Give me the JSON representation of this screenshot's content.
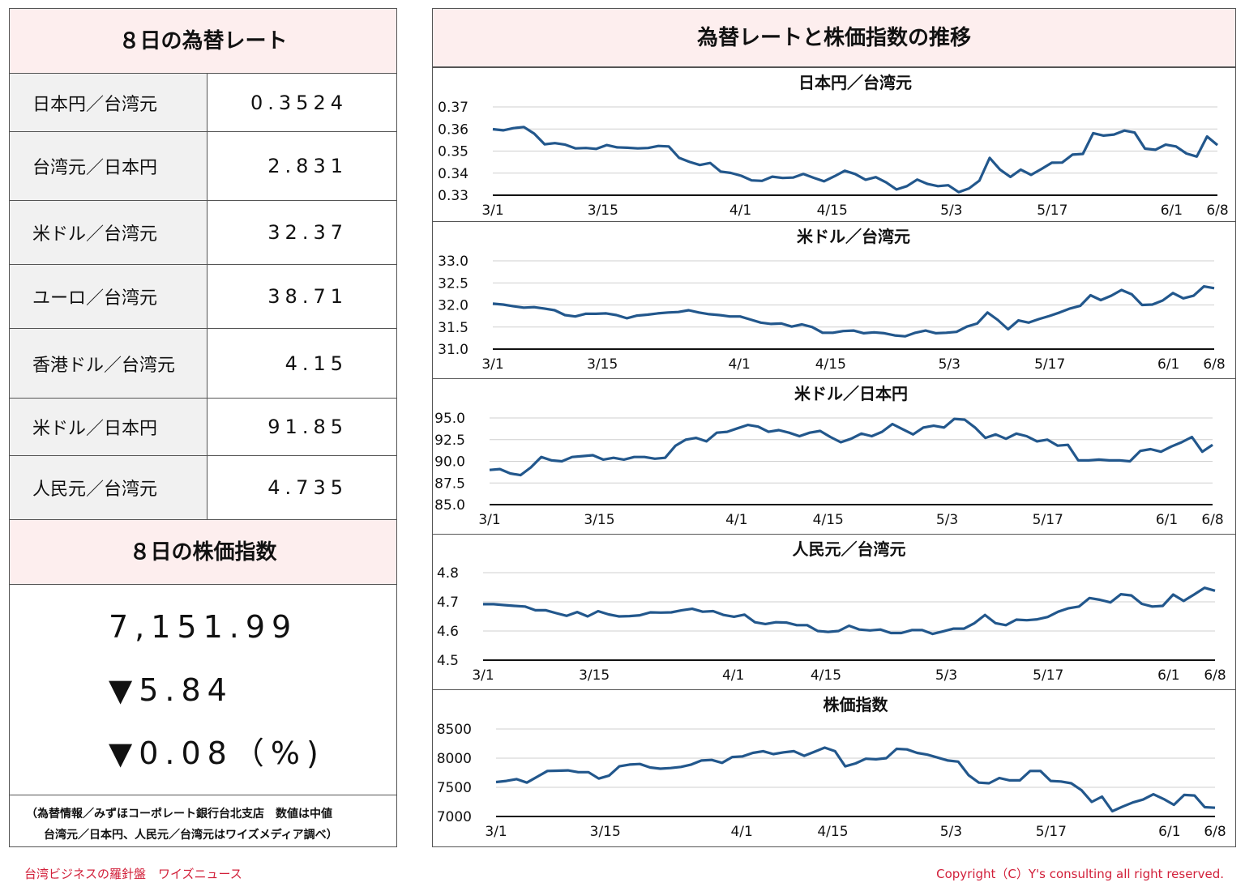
{
  "rates_panel": {
    "title": "８日の為替レート",
    "rows": [
      {
        "name": "日本円／台湾元",
        "value": "0.3524"
      },
      {
        "name": "台湾元／日本円",
        "value": "2.831"
      },
      {
        "name": "米ドル／台湾元",
        "value": "32.37"
      },
      {
        "name": "ユーロ／台湾元",
        "value": "38.71"
      },
      {
        "name": "香港ドル／台湾元",
        "value": "4.15"
      },
      {
        "name": "米ドル／日本円",
        "value": "91.85"
      },
      {
        "name": "人民元／台湾元",
        "value": "4.735"
      }
    ]
  },
  "stock_panel": {
    "title": "８日の株価指数",
    "index": "7,151.99",
    "change": "▼5.84",
    "change_pct": "▼0.08（%)"
  },
  "source_note": {
    "line1": "（為替情報／みずほコーポレート銀行台北支店　数値は中値",
    "line2": "台湾元／日本円、人民元／台湾元はワイズメディア調べ）"
  },
  "charts_panel": {
    "title": "為替レートと株価指数の推移"
  },
  "footer": {
    "left": "台湾ビジネスの羅針盤　ワイズニュース",
    "right": "Copyright（C）Y's consulting all right reserved."
  },
  "colors": {
    "line": "#22578c",
    "header_bg": "#fdeeee",
    "footer_text": "#d2203a"
  },
  "chart_data": [
    {
      "type": "line",
      "title": "日本円／台湾元",
      "x_ticks": [
        "3/1",
        "3/15",
        "4/1",
        "4/15",
        "5/3",
        "5/17",
        "6/1",
        "6/8"
      ],
      "x_tick_index": [
        0,
        12,
        27,
        37,
        50,
        61,
        74,
        79
      ],
      "y_ticks": [
        "0.33",
        "0.34",
        "0.35",
        "0.36",
        "0.37"
      ],
      "ylim": [
        0.33,
        0.37
      ],
      "values": [
        0.3599,
        0.3594,
        0.3604,
        0.3609,
        0.3579,
        0.3531,
        0.3536,
        0.3529,
        0.3512,
        0.3514,
        0.351,
        0.3527,
        0.3517,
        0.3515,
        0.3512,
        0.3514,
        0.3523,
        0.3521,
        0.3469,
        0.3451,
        0.3437,
        0.3446,
        0.3407,
        0.3401,
        0.3388,
        0.3367,
        0.3365,
        0.3384,
        0.3378,
        0.338,
        0.3396,
        0.3379,
        0.3363,
        0.3386,
        0.3411,
        0.3396,
        0.337,
        0.3382,
        0.3358,
        0.3326,
        0.3341,
        0.3371,
        0.3351,
        0.3341,
        0.3345,
        0.3314,
        0.3331,
        0.3366,
        0.3469,
        0.3416,
        0.3383,
        0.3416,
        0.3392,
        0.3419,
        0.3447,
        0.3448,
        0.3484,
        0.3487,
        0.3581,
        0.357,
        0.3575,
        0.3593,
        0.3584,
        0.3511,
        0.3506,
        0.3529,
        0.3521,
        0.3489,
        0.3475,
        0.3566,
        0.3527
      ]
    },
    {
      "type": "line",
      "title": "米ドル／台湾元",
      "x_ticks": [
        "3/1",
        "3/15",
        "4/1",
        "4/15",
        "5/3",
        "5/17",
        "6/1",
        "6/8"
      ],
      "x_tick_index": [
        0,
        12,
        27,
        37,
        50,
        61,
        74,
        79
      ],
      "y_ticks": [
        "31.0",
        "31.5",
        "32.0",
        "32.5",
        "33.0"
      ],
      "ylim": [
        31.0,
        33.0
      ],
      "values": [
        32.03,
        32.01,
        31.97,
        31.94,
        31.95,
        31.92,
        31.88,
        31.77,
        31.74,
        31.8,
        31.8,
        31.81,
        31.77,
        31.7,
        31.76,
        31.78,
        31.81,
        31.83,
        31.84,
        31.88,
        31.83,
        31.79,
        31.77,
        31.74,
        31.74,
        31.67,
        31.6,
        31.57,
        31.58,
        31.51,
        31.56,
        31.5,
        31.37,
        31.37,
        31.41,
        31.42,
        31.36,
        31.38,
        31.36,
        31.31,
        31.29,
        31.37,
        31.42,
        31.36,
        31.37,
        31.39,
        31.51,
        31.58,
        31.83,
        31.66,
        31.45,
        31.65,
        31.6,
        31.68,
        31.75,
        31.83,
        31.92,
        31.98,
        32.22,
        32.11,
        32.21,
        32.34,
        32.24,
        32.0,
        32.01,
        32.1,
        32.27,
        32.15,
        32.21,
        32.42,
        32.38
      ]
    },
    {
      "type": "line",
      "title": "米ドル／日本円",
      "x_ticks": [
        "3/1",
        "3/15",
        "4/1",
        "4/15",
        "5/3",
        "5/17",
        "6/1",
        "6/8"
      ],
      "x_tick_index": [
        0,
        12,
        27,
        37,
        50,
        61,
        74,
        79
      ],
      "y_ticks": [
        "85.0",
        "87.5",
        "90.0",
        "92.5",
        "95.0"
      ],
      "ylim": [
        85.0,
        95.0
      ],
      "values": [
        89.0,
        89.1,
        88.6,
        88.4,
        89.3,
        90.5,
        90.1,
        90.0,
        90.5,
        90.6,
        90.7,
        90.2,
        90.4,
        90.2,
        90.5,
        90.5,
        90.3,
        90.4,
        91.8,
        92.5,
        92.7,
        92.3,
        93.3,
        93.4,
        93.8,
        94.2,
        94.0,
        93.4,
        93.6,
        93.3,
        92.9,
        93.3,
        93.5,
        92.8,
        92.2,
        92.6,
        93.2,
        92.9,
        93.4,
        94.3,
        93.7,
        93.1,
        93.9,
        94.1,
        93.9,
        94.9,
        94.8,
        93.9,
        92.7,
        93.1,
        92.6,
        93.2,
        92.9,
        92.3,
        92.5,
        91.8,
        91.9,
        90.1,
        90.1,
        90.2,
        90.1,
        90.1,
        90.0,
        91.2,
        91.4,
        91.1,
        91.7,
        92.2,
        92.8,
        91.1,
        91.9
      ]
    },
    {
      "type": "line",
      "title": "人民元／台湾元",
      "x_ticks": [
        "3/1",
        "3/15",
        "4/1",
        "4/15",
        "5/3",
        "5/17",
        "6/1",
        "6/8"
      ],
      "x_tick_index": [
        0,
        12,
        27,
        37,
        50,
        61,
        74,
        79
      ],
      "y_ticks": [
        "4.5",
        "4.6",
        "4.7",
        "4.8"
      ],
      "ylim": [
        4.5,
        4.8
      ],
      "values": [
        4.692,
        4.692,
        4.689,
        4.686,
        4.684,
        4.671,
        4.671,
        4.661,
        4.652,
        4.665,
        4.65,
        4.668,
        4.657,
        4.65,
        4.651,
        4.654,
        4.664,
        4.663,
        4.664,
        4.671,
        4.676,
        4.666,
        4.668,
        4.655,
        4.649,
        4.656,
        4.63,
        4.624,
        4.63,
        4.629,
        4.62,
        4.62,
        4.6,
        4.597,
        4.6,
        4.618,
        4.605,
        4.602,
        4.605,
        4.593,
        4.593,
        4.603,
        4.603,
        4.59,
        4.599,
        4.608,
        4.608,
        4.627,
        4.655,
        4.627,
        4.62,
        4.639,
        4.637,
        4.64,
        4.648,
        4.666,
        4.678,
        4.684,
        4.713,
        4.707,
        4.698,
        4.726,
        4.722,
        4.693,
        4.684,
        4.686,
        4.725,
        4.703,
        4.725,
        4.748,
        4.738
      ]
    },
    {
      "type": "line",
      "title": "株価指数",
      "x_ticks": [
        "3/1",
        "3/15",
        "4/1",
        "4/15",
        "5/3",
        "5/17",
        "6/1",
        "6/8"
      ],
      "x_tick_index": [
        0,
        12,
        27,
        37,
        50,
        61,
        74,
        79
      ],
      "y_ticks": [
        "7000",
        "7500",
        "8000",
        "8500"
      ],
      "ylim": [
        7000,
        8500
      ],
      "values": [
        7590,
        7610,
        7640,
        7580,
        7680,
        7780,
        7785,
        7790,
        7760,
        7760,
        7650,
        7700,
        7860,
        7890,
        7900,
        7840,
        7820,
        7830,
        7850,
        7890,
        7960,
        7970,
        7920,
        8020,
        8030,
        8090,
        8120,
        8070,
        8100,
        8120,
        8040,
        8110,
        8180,
        8120,
        7860,
        7910,
        7990,
        7980,
        8000,
        8160,
        8150,
        8090,
        8060,
        8010,
        7960,
        7940,
        7710,
        7580,
        7570,
        7660,
        7620,
        7620,
        7780,
        7780,
        7610,
        7600,
        7570,
        7450,
        7250,
        7340,
        7090,
        7170,
        7240,
        7290,
        7380,
        7300,
        7200,
        7370,
        7360,
        7160,
        7150
      ]
    }
  ]
}
